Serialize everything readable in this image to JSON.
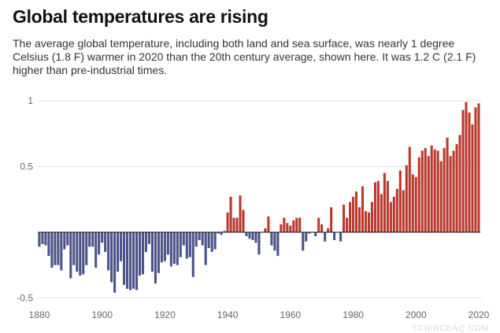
{
  "title": "Global temperatures are rising",
  "subtitle": "The average global temperature, including both land and sea surface, was nearly 1 degree Celsius (1.8 F) warmer in 2020 than the 20th century average, shown here. It was 1.2 C (2.1 F) higher than pre-industrial times.",
  "watermark": "SCIENCEAQ.COM",
  "chart_data": {
    "type": "bar",
    "title": "Global temperatures are rising",
    "xlabel": "",
    "ylabel": "",
    "x_start": 1880,
    "x_end": 2020,
    "ylim": [
      -0.55,
      1.05
    ],
    "yticks": [
      -0.5,
      0.5,
      1
    ],
    "ytick_labels": [
      "-0.5",
      "0.5",
      "1"
    ],
    "xticks": [
      "1880",
      "1900",
      "1920",
      "1940",
      "1960",
      "1980",
      "2000",
      "2020"
    ],
    "grid": true,
    "colors": {
      "positive": "#b93a2e",
      "negative": "#4b5389"
    },
    "values": [
      -0.11,
      -0.09,
      -0.1,
      -0.18,
      -0.27,
      -0.25,
      -0.25,
      -0.29,
      -0.13,
      -0.1,
      -0.35,
      -0.25,
      -0.3,
      -0.33,
      -0.32,
      -0.25,
      -0.11,
      -0.11,
      -0.27,
      -0.17,
      -0.08,
      -0.15,
      -0.29,
      -0.38,
      -0.46,
      -0.3,
      -0.22,
      -0.4,
      -0.43,
      -0.44,
      -0.43,
      -0.44,
      -0.33,
      -0.32,
      -0.15,
      -0.09,
      -0.3,
      -0.39,
      -0.31,
      -0.23,
      -0.22,
      -0.17,
      -0.26,
      -0.24,
      -0.25,
      -0.19,
      -0.1,
      -0.2,
      -0.19,
      -0.34,
      -0.11,
      -0.06,
      -0.1,
      -0.25,
      -0.12,
      -0.15,
      -0.13,
      -0.01,
      -0.02,
      0.01,
      0.15,
      0.27,
      0.11,
      0.11,
      0.28,
      0.17,
      -0.03,
      -0.05,
      -0.06,
      -0.08,
      -0.17,
      0.0,
      0.03,
      0.12,
      -0.1,
      -0.14,
      -0.18,
      0.06,
      0.11,
      0.07,
      0.05,
      0.09,
      0.11,
      0.11,
      -0.14,
      -0.07,
      -0.01,
      0.0,
      -0.03,
      0.11,
      0.06,
      -0.07,
      0.03,
      0.19,
      -0.06,
      0.0,
      -0.07,
      0.21,
      0.11,
      0.23,
      0.27,
      0.31,
      0.19,
      0.35,
      0.16,
      0.15,
      0.23,
      0.38,
      0.39,
      0.29,
      0.45,
      0.39,
      0.23,
      0.27,
      0.33,
      0.47,
      0.32,
      0.51,
      0.65,
      0.44,
      0.42,
      0.57,
      0.62,
      0.64,
      0.58,
      0.66,
      0.63,
      0.62,
      0.54,
      0.64,
      0.72,
      0.58,
      0.62,
      0.67,
      0.74,
      0.93,
      0.99,
      0.91,
      0.82,
      0.95,
      0.98
    ]
  }
}
